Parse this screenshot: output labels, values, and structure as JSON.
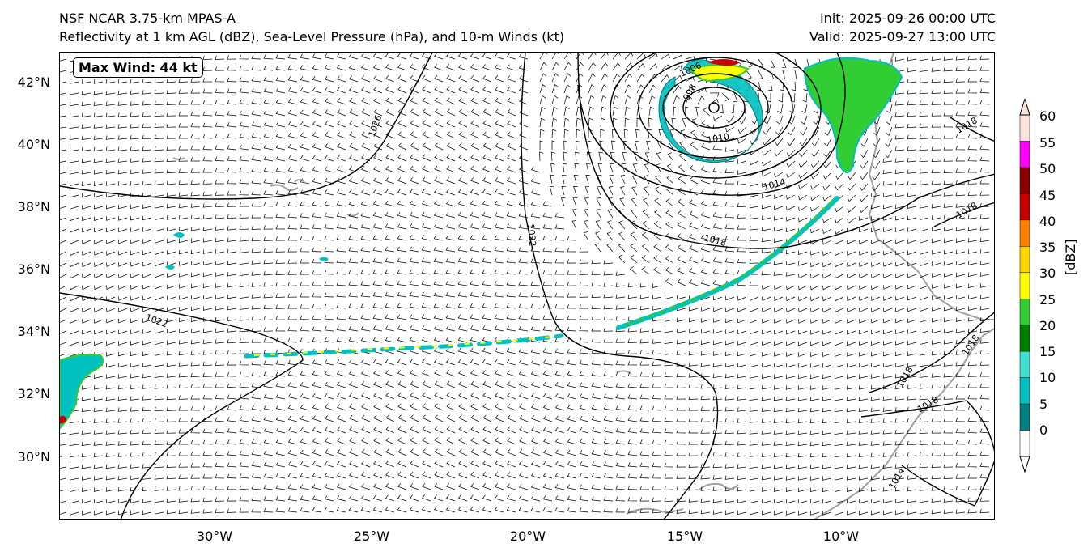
{
  "title": {
    "left_line1": "NSF NCAR 3.75-km MPAS-A",
    "left_line2": "Reflectivity at 1 km AGL (dBZ), Sea-Level Pressure (hPa), and 10-m Winds (kt)",
    "right_line1": "Init: 2025-09-26 00:00 UTC",
    "right_line2": "Valid: 2025-09-27 13:00 UTC"
  },
  "annotation": {
    "max_wind": "Max Wind: 44 kt"
  },
  "axes": {
    "lat_labels": [
      "42°N",
      "40°N",
      "38°N",
      "36°N",
      "34°N",
      "32°N",
      "30°N"
    ],
    "lon_labels": [
      "30°W",
      "25°W",
      "20°W",
      "15°W",
      "10°W"
    ]
  },
  "isobar_labels": [
    "1026",
    "1022",
    "1022",
    "1018",
    "1014",
    "1010",
    "1006",
    "1002",
    "998",
    "1018",
    "1018",
    "1018",
    "1018",
    "1018",
    "1014"
  ],
  "colorbar": {
    "units": "[dBZ]",
    "ticks": [
      "60",
      "55",
      "50",
      "45",
      "40",
      "35",
      "30",
      "25",
      "20",
      "15",
      "10",
      "5",
      "0"
    ],
    "colors": [
      "#ffe4dc",
      "#ff00ff",
      "#8b0000",
      "#c80000",
      "#ff7f00",
      "#ffd700",
      "#ffff00",
      "#32cd32",
      "#008000",
      "#40e0d0",
      "#00c0c0",
      "#008080",
      "#ffffff"
    ]
  }
}
